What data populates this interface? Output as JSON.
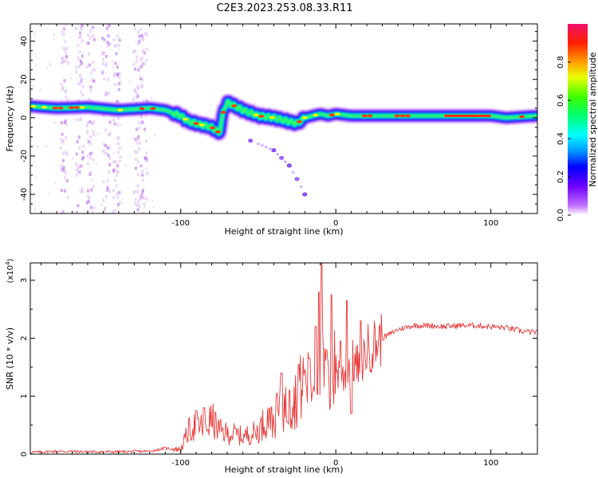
{
  "title": "C2E3.2023.253.08.33.R11",
  "chart_data": [
    {
      "type": "heatmap",
      "xlabel": "Height of straight line (km)",
      "ylabel": "Frequency (Hz)",
      "xlim": [
        -197,
        130
      ],
      "ylim": [
        -50,
        49
      ],
      "x_ticks": [
        -100,
        0,
        100
      ],
      "x_tick_labels": [
        "-100",
        "0",
        "100"
      ],
      "y_ticks": [
        -40,
        -20,
        0,
        20,
        40
      ],
      "y_tick_labels": [
        "-40",
        "-20",
        "0",
        "20",
        "40"
      ],
      "colorbar": {
        "label": "Normalized spectral amplitude",
        "range": [
          0,
          1
        ],
        "ticks": [
          0.0,
          0.2,
          0.4,
          0.6,
          0.8
        ],
        "tick_labels": [
          "0.0",
          "0.2",
          "0.4",
          "0.6",
          "0.8"
        ]
      },
      "main_trace": [
        [
          -197,
          6
        ],
        [
          -180,
          5
        ],
        [
          -160,
          5.5
        ],
        [
          -140,
          4
        ],
        [
          -120,
          5
        ],
        [
          -110,
          4
        ],
        [
          -100,
          1
        ],
        [
          -95,
          -2
        ],
        [
          -90,
          -3
        ],
        [
          -85,
          -4
        ],
        [
          -80,
          -5
        ],
        [
          -75,
          -8
        ],
        [
          -72,
          5
        ],
        [
          -70,
          8
        ],
        [
          -60,
          4
        ],
        [
          -50,
          1
        ],
        [
          -40,
          0
        ],
        [
          -30,
          -2
        ],
        [
          -25,
          -3
        ],
        [
          -20,
          0
        ],
        [
          -15,
          1
        ],
        [
          -10,
          2
        ],
        [
          -5,
          1
        ],
        [
          0,
          2
        ],
        [
          10,
          1
        ],
        [
          20,
          1
        ],
        [
          40,
          1
        ],
        [
          60,
          1
        ],
        [
          80,
          1
        ],
        [
          100,
          1
        ],
        [
          110,
          0
        ],
        [
          130,
          1
        ]
      ],
      "weak_trace": [
        [
          -55,
          -12
        ],
        [
          -40,
          -17
        ],
        [
          -35,
          -21
        ],
        [
          -30,
          -25
        ],
        [
          -25,
          -32
        ],
        [
          -20,
          -40
        ]
      ]
    },
    {
      "type": "line",
      "xlabel": "Height of straight line (km)",
      "ylabel": "SNR (10 * v/v)",
      "y_multiplier": "(x10^4)",
      "y_multiplier_base": "(x10",
      "y_multiplier_exp": "4",
      "xlim": [
        -197,
        130
      ],
      "ylim": [
        0,
        3.3
      ],
      "x_ticks": [
        -100,
        0,
        100
      ],
      "x_tick_labels": [
        "-100",
        "0",
        "100"
      ],
      "y_ticks": [
        0,
        1,
        2,
        3
      ],
      "y_tick_labels": [
        "0",
        "1",
        "2",
        "3"
      ],
      "series": [
        {
          "name": "SNR",
          "color": "#e83a3a",
          "x": [
            -197,
            -180,
            -160,
            -140,
            -120,
            -110,
            -100,
            -95,
            -90,
            -85,
            -80,
            -75,
            -70,
            -65,
            -60,
            -55,
            -50,
            -45,
            -40,
            -35,
            -30,
            -25,
            -20,
            -15,
            -10,
            -5,
            0,
            5,
            10,
            15,
            20,
            25,
            30,
            40,
            50,
            60,
            70,
            80,
            90,
            100,
            110,
            120,
            130
          ],
          "y": [
            0.03,
            0.05,
            0.04,
            0.04,
            0.05,
            0.1,
            0.08,
            0.4,
            0.5,
            0.45,
            0.6,
            0.4,
            0.35,
            0.35,
            0.3,
            0.35,
            0.4,
            0.6,
            0.55,
            0.8,
            0.8,
            1.0,
            1.3,
            1.2,
            1.6,
            1.1,
            1.5,
            1.3,
            1.6,
            1.5,
            1.8,
            1.9,
            2.0,
            2.15,
            2.22,
            2.22,
            2.2,
            2.22,
            2.22,
            2.2,
            2.18,
            2.12,
            2.1
          ]
        }
      ],
      "spikes": [
        [
          -90,
          0.75
        ],
        [
          -85,
          0.8
        ],
        [
          -43,
          0.8
        ],
        [
          -38,
          1.05
        ],
        [
          -35,
          1.4
        ],
        [
          -30,
          1.1
        ],
        [
          -24,
          1.55
        ],
        [
          -20,
          1.45
        ],
        [
          -17,
          1.65
        ],
        [
          -13,
          2.2
        ],
        [
          -11,
          2.8
        ],
        [
          -9,
          3.3
        ],
        [
          -6,
          1.8
        ],
        [
          -3,
          2.75
        ],
        [
          3,
          1.95
        ],
        [
          7,
          2.65
        ],
        [
          10,
          0.7
        ],
        [
          16,
          2.3
        ]
      ]
    }
  ]
}
